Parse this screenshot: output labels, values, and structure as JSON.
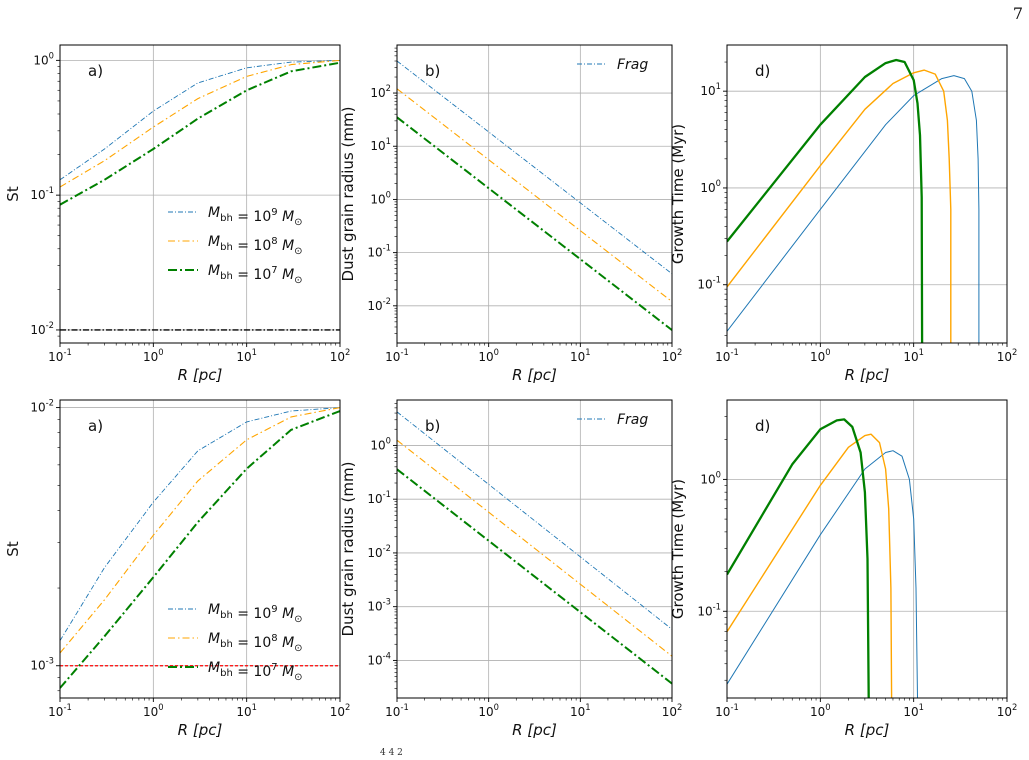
{
  "page_number": "7",
  "caption_fragment": "4                                              4                   2",
  "legend_labels": {
    "m9": "M_{bh} = 10^9 M_⊙",
    "m8": "M_{bh} = 10^8 M_⊙",
    "m7": "M_{bh} = 10^7 M_⊙",
    "frag": "Frag"
  },
  "colors": {
    "m9": "#1f77b4",
    "m8": "#ffa500",
    "m7": "#008000",
    "grid": "#b0b0b0",
    "h_line_top": "#000000",
    "h_line_bottom": "#ff0000"
  },
  "chart_data": [
    {
      "type": "line",
      "panel_label": "a)",
      "xlabel": "R [pc]",
      "ylabel": "St",
      "xscale": "log",
      "yscale": "log",
      "xlim": [
        0.1,
        100
      ],
      "ylim": [
        0.008,
        1.3
      ],
      "xticks": [
        0.1,
        1,
        10,
        100
      ],
      "xtick_labels": [
        "10^{-1}",
        "10^{0}",
        "10^{1}",
        "10^{2}"
      ],
      "yticks": [
        0.01,
        0.1,
        1
      ],
      "ytick_labels": [
        "10^{-2}",
        "10^{-1}",
        "10^{0}"
      ],
      "grid": true,
      "legend": "center-right",
      "series": [
        {
          "key": "m9",
          "name": "M_{bh} = 10^9 M_⊙",
          "style": "dashdot-thin",
          "x": [
            0.1,
            0.3,
            1,
            3,
            10,
            30,
            100
          ],
          "y": [
            0.13,
            0.22,
            0.42,
            0.68,
            0.88,
            0.97,
            1.0
          ]
        },
        {
          "key": "m8",
          "name": "M_{bh} = 10^8 M_⊙",
          "style": "dashdot-mid",
          "x": [
            0.1,
            0.3,
            1,
            3,
            10,
            30,
            100
          ],
          "y": [
            0.115,
            0.18,
            0.32,
            0.52,
            0.76,
            0.93,
            1.0
          ]
        },
        {
          "key": "m7",
          "name": "M_{bh} = 10^7 M_⊙",
          "style": "dashdot-thick",
          "x": [
            0.1,
            0.3,
            1,
            3,
            10,
            30,
            100
          ],
          "y": [
            0.085,
            0.13,
            0.22,
            0.37,
            0.6,
            0.83,
            0.96
          ]
        }
      ],
      "hline": {
        "y": 0.01,
        "color_key": "h_line_top",
        "style": "dashdot"
      }
    },
    {
      "type": "line",
      "panel_label": "b)",
      "xlabel": "R [pc]",
      "ylabel": "Dust grain radius (mm)",
      "xscale": "log",
      "yscale": "log",
      "xlim": [
        0.1,
        100
      ],
      "ylim": [
        0.002,
        800
      ],
      "xticks": [
        0.1,
        1,
        10,
        100
      ],
      "xtick_labels": [
        "10^{-1}",
        "10^{0}",
        "10^{1}",
        "10^{2}"
      ],
      "yticks": [
        0.01,
        0.1,
        1,
        10,
        100
      ],
      "ytick_labels": [
        "10^{-2}",
        "10^{-1}",
        "10^{0}",
        "10^{1}",
        "10^{2}"
      ],
      "grid": true,
      "legend": "top-right",
      "series": [
        {
          "key": "m9",
          "name": "Frag",
          "style": "dashdot-thin",
          "x": [
            0.1,
            100
          ],
          "y": [
            400,
            0.04
          ]
        },
        {
          "key": "m8",
          "name": "",
          "style": "dashdot-mid",
          "x": [
            0.1,
            100
          ],
          "y": [
            120,
            0.012
          ]
        },
        {
          "key": "m7",
          "name": "",
          "style": "dashdot-thick",
          "x": [
            0.1,
            100
          ],
          "y": [
            35,
            0.0035
          ]
        }
      ]
    },
    {
      "type": "line",
      "panel_label": "d)",
      "xlabel": "R [pc]",
      "ylabel": "Growth Time (Myr)",
      "xscale": "log",
      "yscale": "log",
      "xlim": [
        0.1,
        100
      ],
      "ylim": [
        0.025,
        30
      ],
      "xticks": [
        0.1,
        1,
        10,
        100
      ],
      "xtick_labels": [
        "10^{-1}",
        "10^{0}",
        "10^{1}",
        "10^{2}"
      ],
      "yticks": [
        0.1,
        1,
        10
      ],
      "ytick_labels": [
        "10^{-1}",
        "10^{0}",
        "10^{1}"
      ],
      "grid": true,
      "series": [
        {
          "key": "m9",
          "name": "",
          "style": "solid-thin",
          "x": [
            0.1,
            1,
            5,
            10,
            20,
            27,
            35,
            42,
            47,
            49,
            50,
            50
          ],
          "y": [
            0.033,
            0.6,
            4.5,
            9.0,
            13.5,
            14.5,
            13.5,
            10,
            5,
            2,
            0.6,
            0.025
          ]
        },
        {
          "key": "m8",
          "name": "",
          "style": "solid-mid",
          "x": [
            0.1,
            1,
            3,
            6,
            10,
            13,
            17,
            21,
            23,
            24,
            25,
            25
          ],
          "y": [
            0.095,
            1.7,
            6.5,
            12,
            15.5,
            16.5,
            15,
            10,
            5,
            2,
            0.6,
            0.025
          ]
        },
        {
          "key": "m7",
          "name": "",
          "style": "solid-thick",
          "x": [
            0.1,
            1,
            3,
            5,
            6.5,
            8,
            10,
            11,
            11.7,
            12.2,
            12.3
          ],
          "y": [
            0.28,
            4.5,
            14,
            19.5,
            21,
            20,
            13,
            7.5,
            3.5,
            0.8,
            0.025
          ]
        }
      ]
    },
    {
      "type": "line",
      "panel_label": "a)",
      "xlabel": "R [pc]",
      "ylabel": "St",
      "xscale": "log",
      "yscale": "log",
      "xlim": [
        0.1,
        100
      ],
      "ylim": [
        0.00075,
        0.0107
      ],
      "xticks": [
        0.1,
        1,
        10,
        100
      ],
      "xtick_labels": [
        "10^{-1}",
        "10^{0}",
        "10^{1}",
        "10^{2}"
      ],
      "yticks": [
        0.001,
        0.01
      ],
      "ytick_labels": [
        "10^{-3}",
        "10^{-2}"
      ],
      "grid": true,
      "legend": "bottom-right",
      "series": [
        {
          "key": "m9",
          "name": "M_{bh} = 10^9 M_⊙",
          "style": "dashdot-thin",
          "x": [
            0.1,
            0.3,
            1,
            3,
            10,
            30,
            100
          ],
          "y": [
            0.00125,
            0.0024,
            0.0043,
            0.0068,
            0.0088,
            0.0097,
            0.01
          ]
        },
        {
          "key": "m8",
          "name": "M_{bh} = 10^8 M_⊙",
          "style": "dashdot-mid",
          "x": [
            0.1,
            0.3,
            1,
            3,
            10,
            30,
            100
          ],
          "y": [
            0.00112,
            0.0018,
            0.0032,
            0.0052,
            0.0075,
            0.0092,
            0.01
          ]
        },
        {
          "key": "m7",
          "name": "M_{bh} = 10^7 M_⊙",
          "style": "dashdot-thick",
          "x": [
            0.1,
            0.3,
            1,
            3,
            10,
            30,
            100
          ],
          "y": [
            0.00082,
            0.0013,
            0.0022,
            0.0036,
            0.0058,
            0.0082,
            0.0097
          ]
        }
      ],
      "hline": {
        "y": 0.001,
        "color_key": "h_line_bottom",
        "style": "dashed"
      }
    },
    {
      "type": "line",
      "panel_label": "b)",
      "xlabel": "R [pc]",
      "ylabel": "Dust grain radius (mm)",
      "xscale": "log",
      "yscale": "log",
      "xlim": [
        0.1,
        100
      ],
      "ylim": [
        2e-05,
        7
      ],
      "xticks": [
        0.1,
        1,
        10,
        100
      ],
      "xtick_labels": [
        "10^{-1}",
        "10^{0}",
        "10^{1}",
        "10^{2}"
      ],
      "yticks": [
        0.0001,
        0.001,
        0.01,
        0.1,
        1
      ],
      "ytick_labels": [
        "10^{-4}",
        "10^{-3}",
        "10^{-2}",
        "10^{-1}",
        "10^{0}"
      ],
      "grid": true,
      "legend": "top-right",
      "series": [
        {
          "key": "m9",
          "name": "Frag",
          "style": "dashdot-thin",
          "x": [
            0.1,
            100
          ],
          "y": [
            4.2,
            0.00038
          ]
        },
        {
          "key": "m8",
          "name": "",
          "style": "dashdot-mid",
          "x": [
            0.1,
            100
          ],
          "y": [
            1.25,
            0.00012
          ]
        },
        {
          "key": "m7",
          "name": "",
          "style": "dashdot-thick",
          "x": [
            0.1,
            100
          ],
          "y": [
            0.36,
            3.7e-05
          ]
        }
      ]
    },
    {
      "type": "line",
      "panel_label": "d)",
      "xlabel": "R [pc]",
      "ylabel": "Growth Time (Myr)",
      "xscale": "log",
      "yscale": "log",
      "xlim": [
        0.1,
        100
      ],
      "ylim": [
        0.022,
        4
      ],
      "xticks": [
        0.1,
        1,
        10,
        100
      ],
      "xtick_labels": [
        "10^{-1}",
        "10^{0}",
        "10^{1}",
        "10^{2}"
      ],
      "yticks": [
        0.1,
        1
      ],
      "ytick_labels": [
        "10^{-1}",
        "10^{0}"
      ],
      "grid": true,
      "series": [
        {
          "key": "m9",
          "name": "",
          "style": "solid-thin",
          "x": [
            0.1,
            1,
            3,
            5,
            6,
            7.5,
            9,
            10,
            10.6,
            11
          ],
          "y": [
            0.028,
            0.38,
            1.2,
            1.6,
            1.65,
            1.5,
            1.0,
            0.5,
            0.15,
            0.022
          ]
        },
        {
          "key": "m8",
          "name": "",
          "style": "solid-mid",
          "x": [
            0.1,
            1,
            2,
            3,
            3.5,
            4.3,
            5,
            5.4,
            5.7,
            5.8
          ],
          "y": [
            0.07,
            0.9,
            1.75,
            2.15,
            2.2,
            1.9,
            1.2,
            0.6,
            0.15,
            0.022
          ]
        },
        {
          "key": "m7",
          "name": "",
          "style": "solid-thick",
          "x": [
            0.1,
            0.5,
            1,
            1.5,
            1.8,
            2.2,
            2.7,
            3.0,
            3.2,
            3.3
          ],
          "y": [
            0.19,
            1.3,
            2.4,
            2.8,
            2.85,
            2.5,
            1.6,
            0.8,
            0.25,
            0.022
          ]
        }
      ]
    }
  ]
}
